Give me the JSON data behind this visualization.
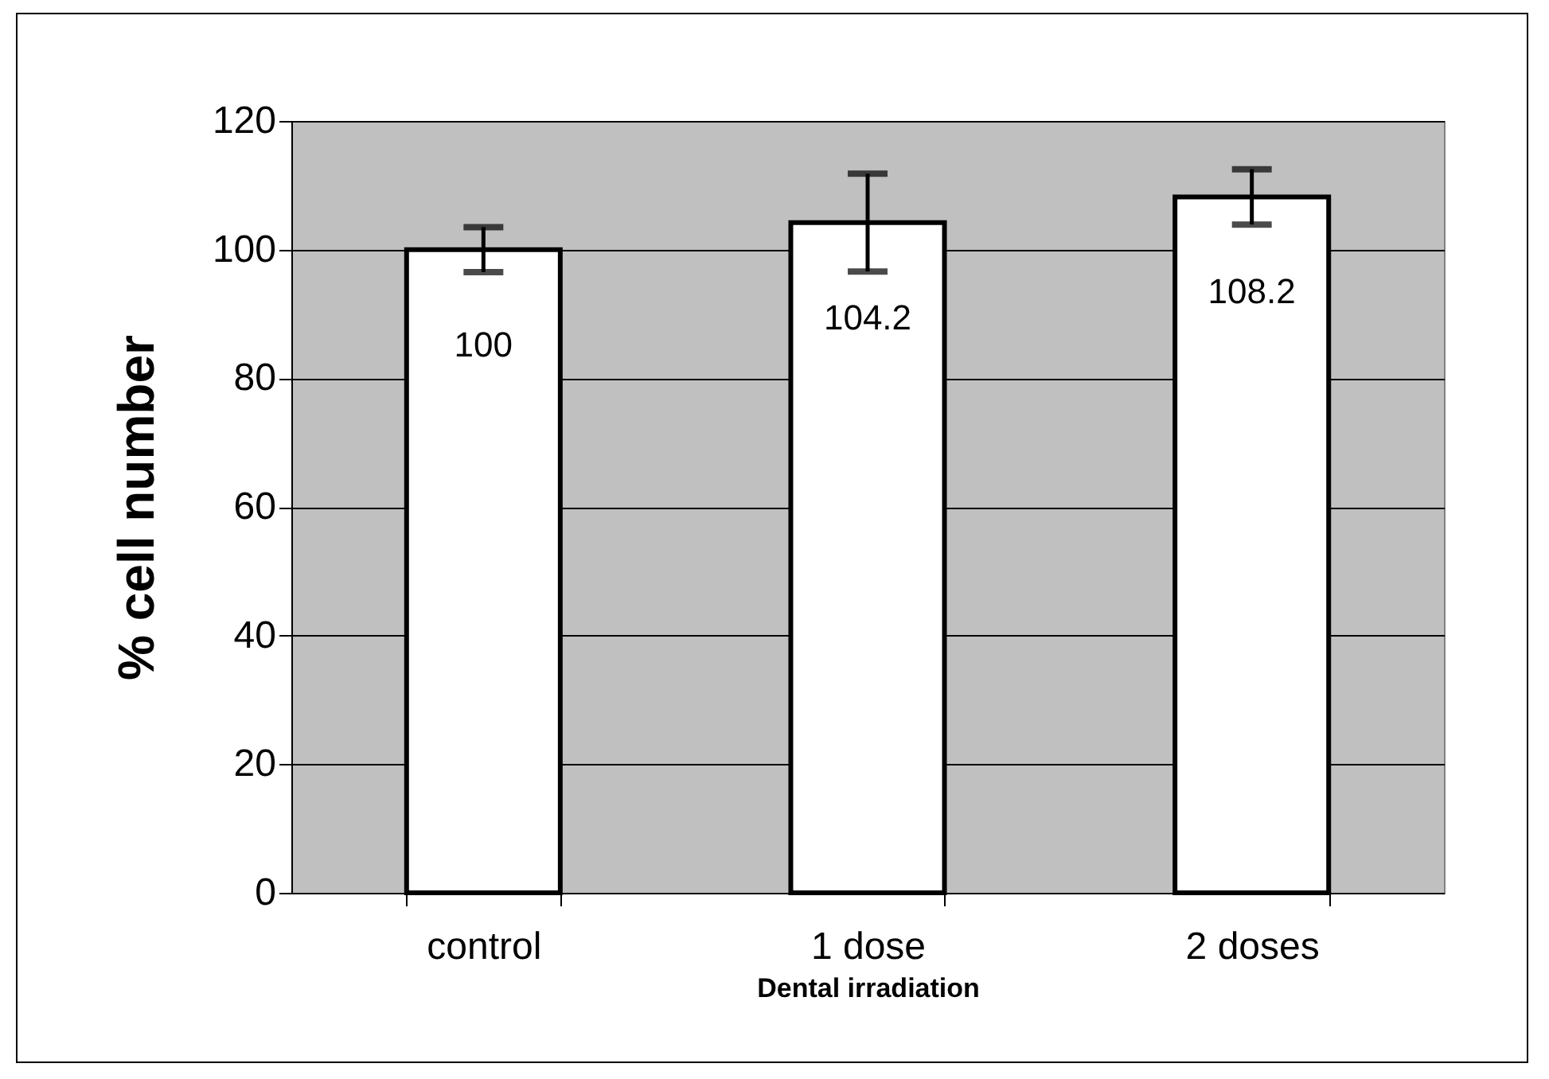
{
  "chart_data": {
    "type": "bar",
    "xlabel": "Dental irradiation",
    "ylabel": "% cell number",
    "categories": [
      "control",
      "1 dose",
      "2 doses"
    ],
    "values": [
      100,
      104.2,
      108.2
    ],
    "errors": [
      3.5,
      7.6,
      4.3
    ],
    "color": "#ffffff",
    "data_labels": true,
    "ylim": [
      0,
      120
    ],
    "yticks": [
      0,
      20,
      40,
      60,
      80,
      100,
      120
    ],
    "grid": "y"
  }
}
